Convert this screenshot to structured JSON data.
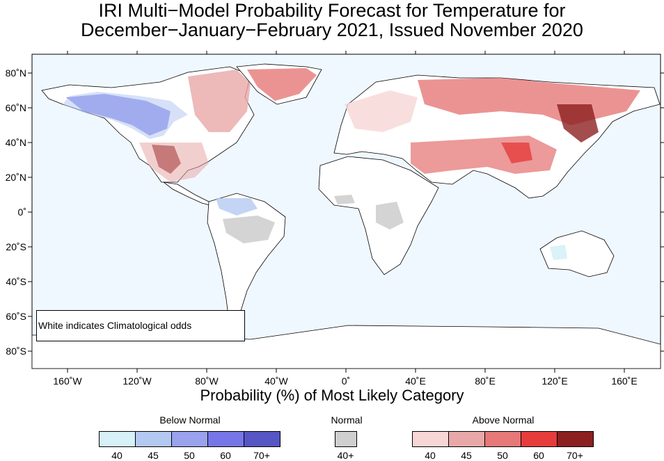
{
  "title": {
    "line1": "IRI Multi−Model Probability Forecast for Temperature for",
    "line2": "December−January−February 2021, Issued November 2020"
  },
  "map": {
    "background_color": "#f0f8ff",
    "x_ticks": [
      "160˚W",
      "120˚W",
      "80˚W",
      "40˚W",
      "0˚",
      "40˚E",
      "80˚E",
      "120˚E",
      "160˚E"
    ],
    "y_ticks": [
      "80˚N",
      "60˚N",
      "40˚N",
      "20˚N",
      "0˚",
      "20˚S",
      "40˚S",
      "60˚S",
      "80˚S"
    ],
    "note": "White indicates Climatological odds"
  },
  "legend": {
    "title": "Probability (%) of Most Likely Category",
    "below": {
      "title": "Below Normal",
      "labels": [
        "40",
        "45",
        "50",
        "60",
        "70+"
      ],
      "colors": [
        "#d6f1f7",
        "#b4c9f2",
        "#9aa2ee",
        "#7676e8",
        "#5656c4"
      ]
    },
    "normal": {
      "title": "Normal",
      "labels": [
        "40+"
      ],
      "colors": [
        "#cfcfcf"
      ]
    },
    "above": {
      "title": "Above Normal",
      "labels": [
        "40",
        "45",
        "50",
        "60",
        "70+"
      ],
      "colors": [
        "#f7d6d6",
        "#e8a8a8",
        "#e67878",
        "#e63c3c",
        "#8c2020"
      ]
    }
  }
}
